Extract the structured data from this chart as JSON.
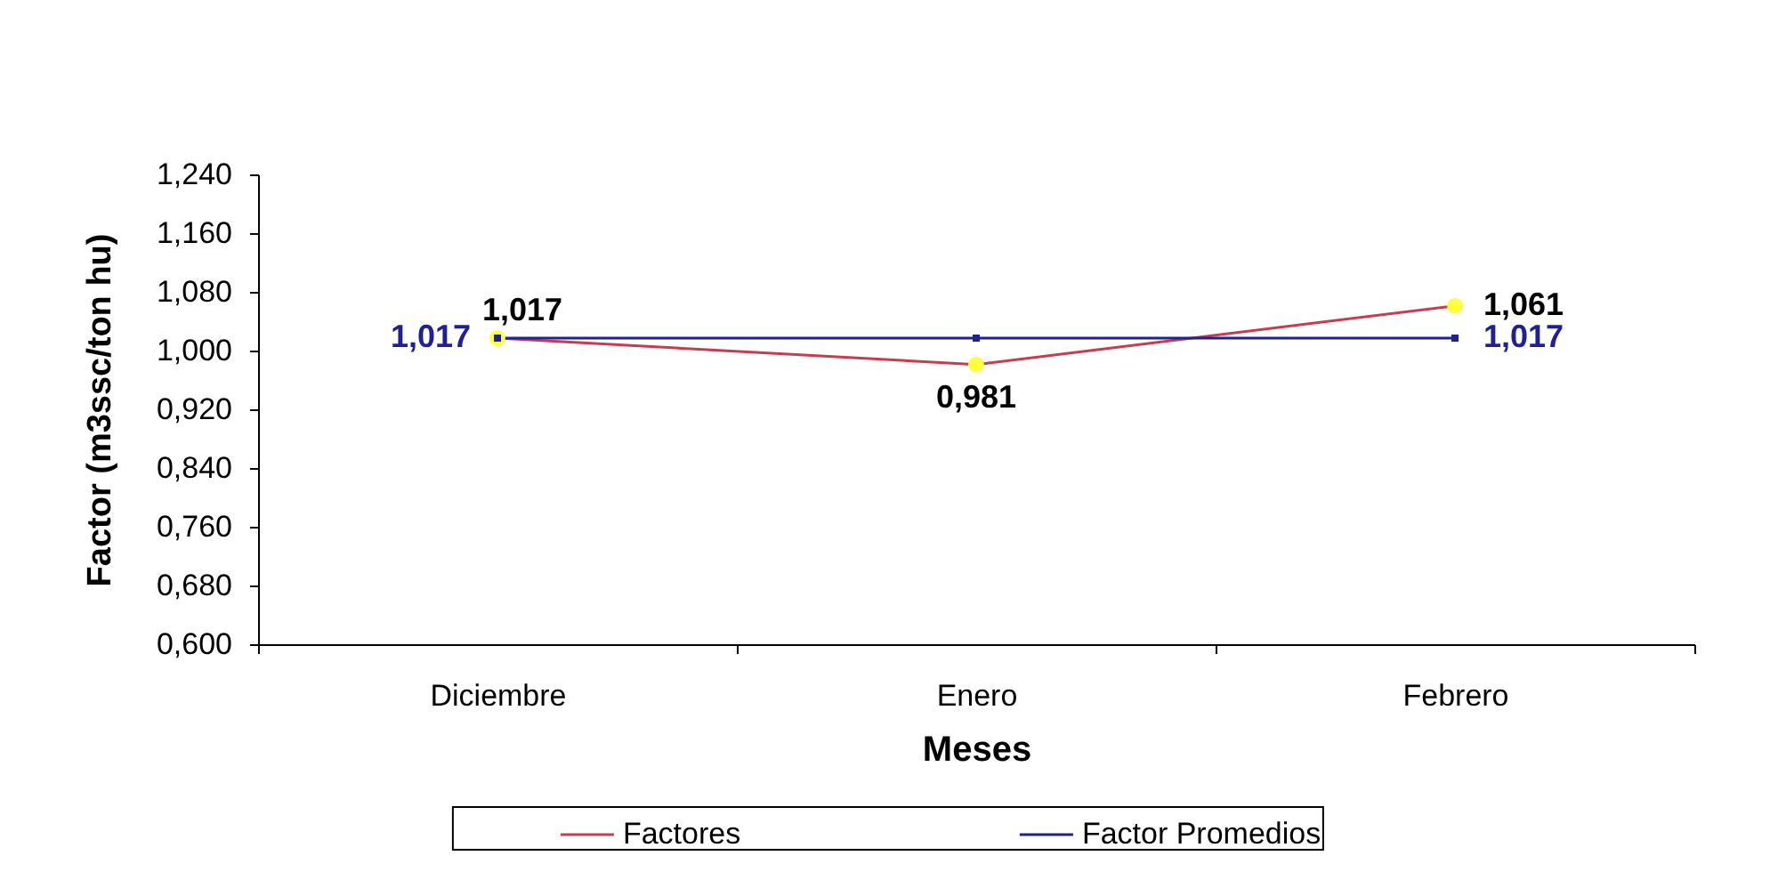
{
  "chart_data": {
    "type": "line",
    "xlabel": "Meses",
    "ylabel": "Factor (m3ssc/ton hu)",
    "categories": [
      "Diciembre",
      "Enero",
      "Febrero"
    ],
    "series": [
      {
        "name": "Factores",
        "color": "#c83c50",
        "colors": [
          "#ffff40",
          "#ffff40",
          "#ffff40"
        ],
        "marker": "circle",
        "values": [
          1.017,
          0.981,
          1.061
        ],
        "value_labels": [
          "1,017",
          "0,981",
          "1,061"
        ]
      },
      {
        "name": "Factor Promedios",
        "color": "#1f1f96",
        "marker": "square",
        "values": [
          1.017,
          1.017,
          1.017
        ],
        "value_labels": [
          "1,017",
          null,
          "1,017"
        ]
      }
    ],
    "ylim": [
      0.6,
      1.24
    ],
    "yticks": [
      {
        "value": 0.6,
        "label": "0,600"
      },
      {
        "value": 0.68,
        "label": "0,680"
      },
      {
        "value": 0.76,
        "label": "0,760"
      },
      {
        "value": 0.84,
        "label": "0,840"
      },
      {
        "value": 0.92,
        "label": "0,920"
      },
      {
        "value": 1.0,
        "label": "1,000"
      },
      {
        "value": 1.08,
        "label": "1,080"
      },
      {
        "value": 1.16,
        "label": "1,160"
      },
      {
        "value": 1.24,
        "label": "1,240"
      }
    ],
    "grid": false,
    "legend": "bottom",
    "line_style": "solid"
  }
}
